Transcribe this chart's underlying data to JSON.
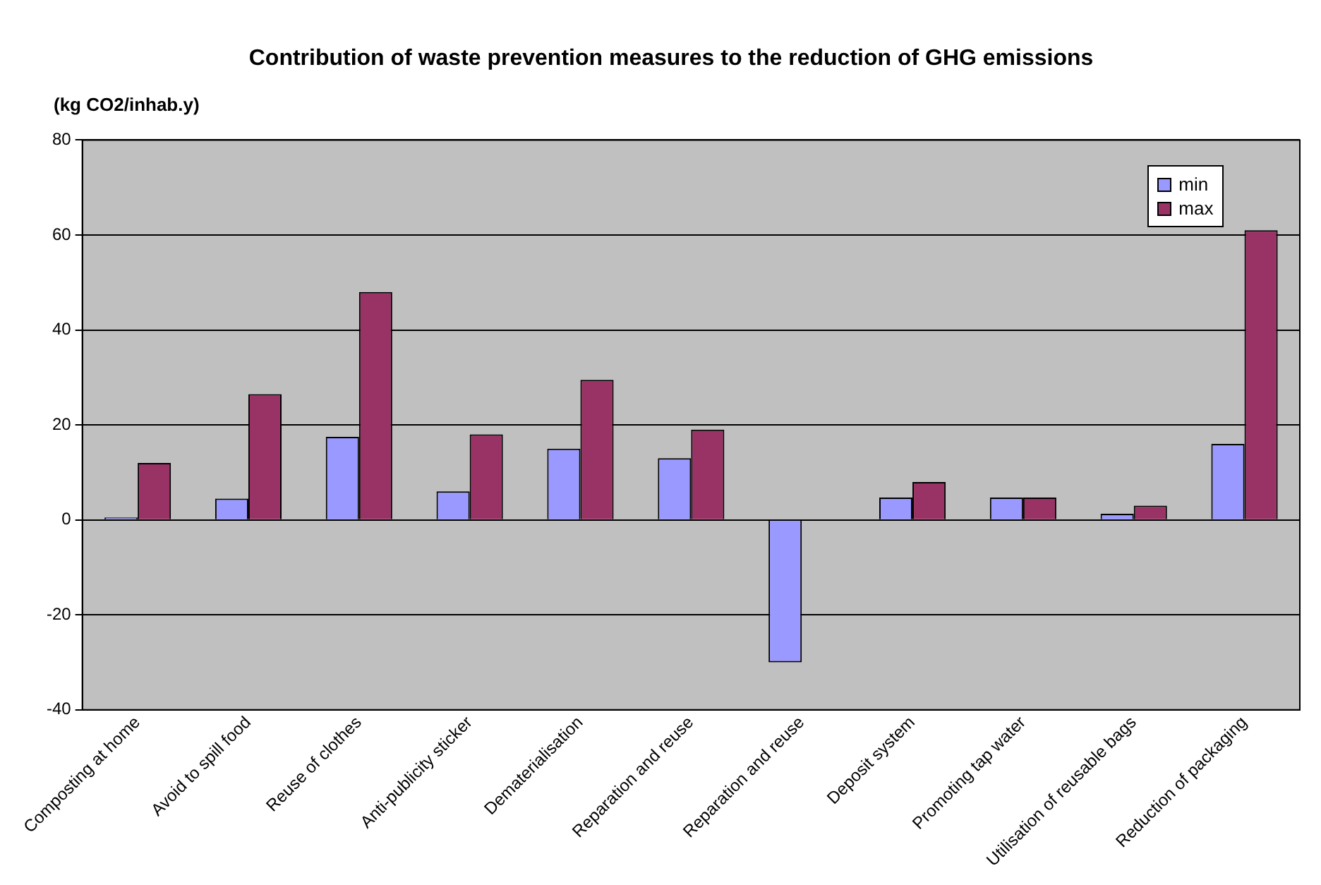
{
  "chart_data": {
    "type": "bar",
    "title": "Contribution of waste prevention measures to the reduction of GHG emissions",
    "ylabel": "(kg CO2/inhab.y)",
    "categories": [
      "Composting at home",
      "Avoid to spill food",
      "Reuse of clothes",
      "Anti-publicity sticker",
      "Dematerialisation",
      "Reparation and reuse",
      "Reparation and reuse",
      "Deposit system",
      "Promoting tap water",
      "Utilisation of reusable bags",
      "Reduction of packaging"
    ],
    "series": [
      {
        "name": "min",
        "color": "#9999ff",
        "values": [
          0.5,
          4.5,
          17.5,
          6,
          15,
          13,
          -30,
          4.7,
          4.7,
          1.3,
          16
        ]
      },
      {
        "name": "max",
        "color": "#993366",
        "values": [
          12,
          26.5,
          48,
          18,
          29.5,
          19,
          0,
          8,
          4.7,
          3,
          61
        ]
      }
    ],
    "ylim": [
      -40,
      80
    ],
    "yticks": [
      -40,
      -20,
      0,
      20,
      40,
      60,
      80
    ],
    "grid": "y",
    "legend": "top right"
  }
}
